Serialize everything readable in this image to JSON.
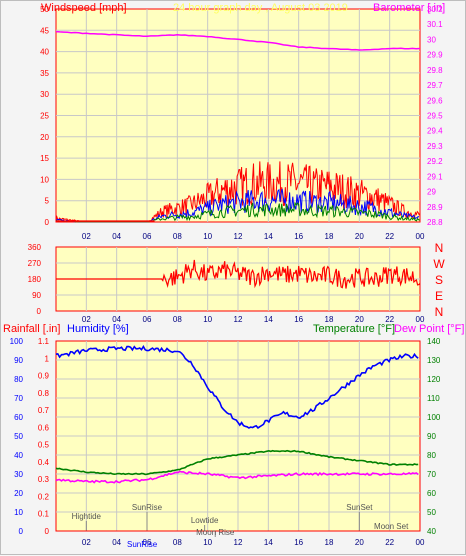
{
  "colors": {
    "plot_bg": "#ffffc0",
    "grid": "#c8c8c8",
    "windspeed": "#ff0000",
    "gust_blue": "#0000ff",
    "wind_green": "#008000",
    "barometer": "#ff00ff",
    "direction": "#ff0000",
    "humidity": "#0000ff",
    "temperature": "#008000",
    "dewpoint": "#ff00ff",
    "title": "#ffff60",
    "events": "#555555"
  },
  "top_panel": {
    "left_title": "Windspeed [mph]",
    "center_title": "24 hour graph day , August 03 2019",
    "right_title": "Barometer [.in]",
    "left_ticks": [
      "50",
      "45",
      "40",
      "35",
      "30",
      "25",
      "20",
      "15",
      "10",
      "5",
      "0"
    ],
    "right_ticks": [
      "30.2",
      "30.1",
      "30",
      "29.9",
      "29.8",
      "29.7",
      "29.6",
      "29.5",
      "29.4",
      "29.3",
      "29.2",
      "29.1",
      "29",
      "28.9",
      "28.8"
    ],
    "x_ticks": [
      "02",
      "04",
      "06",
      "08",
      "10",
      "12",
      "14",
      "16",
      "18",
      "20",
      "22",
      "00"
    ]
  },
  "dir_panel": {
    "left_ticks": [
      "360",
      "270",
      "180",
      "90",
      "0"
    ],
    "compass": [
      "N",
      "W",
      "S",
      "E",
      "N"
    ],
    "x_ticks": [
      "02",
      "04",
      "06",
      "08",
      "10",
      "12",
      "14",
      "16",
      "18",
      "20",
      "22",
      "00"
    ]
  },
  "bottom_panel": {
    "rain_title": "Rainfall [.in]",
    "humidity_title": "Humidity [%]",
    "temp_title": "Temperature [°F]",
    "dew_title": "Dew Point [°F]",
    "humidity_ticks": [
      "100",
      "90",
      "80",
      "70",
      "60",
      "50",
      "40",
      "30",
      "20",
      "10",
      "0"
    ],
    "rain_ticks": [
      "1.1",
      "1",
      "0.9",
      "0.8",
      "0.7",
      "0.6",
      "0.5",
      "0.4",
      "0.3",
      "0.2",
      "0.1",
      "0"
    ],
    "temp_ticks": [
      "140",
      "130",
      "120",
      "110",
      "100",
      "90",
      "80",
      "70",
      "60",
      "50",
      "40"
    ],
    "x_ticks": [
      "02",
      "04",
      "06",
      "08",
      "10",
      "12",
      "14",
      "16",
      "18",
      "20",
      "22",
      "00"
    ],
    "events": [
      {
        "label": "Hightide",
        "hour": 2
      },
      {
        "label": "SunRise",
        "hour": 6
      },
      {
        "label": "Lowtide",
        "hour": 10
      },
      {
        "label": "Moon Rise",
        "hour": 10
      },
      {
        "label": "SunSet",
        "hour": 20
      },
      {
        "label": "Moon Set",
        "hour": 22
      }
    ],
    "sunrise_axis_label": "SunRise"
  },
  "chart_data": [
    {
      "type": "line",
      "title": "24 hour graph day , August 03 2019",
      "x_unit": "hour",
      "xlim": [
        0,
        24
      ],
      "series": [
        {
          "name": "Windspeed [mph]",
          "axis": "left",
          "ylim": [
            0,
            50
          ],
          "x": [
            0,
            1,
            2,
            3,
            4,
            5,
            6,
            7,
            8,
            9,
            10,
            11,
            12,
            13,
            14,
            15,
            16,
            17,
            18,
            19,
            20,
            21,
            22,
            23,
            24
          ],
          "y": [
            1,
            0.5,
            0,
            0,
            0,
            0,
            0,
            3,
            4,
            5,
            7,
            9,
            10,
            11,
            11,
            11,
            11,
            10,
            10,
            9,
            8,
            7,
            5,
            3,
            2
          ]
        },
        {
          "name": "Barometer [.in]",
          "axis": "right",
          "ylim": [
            28.8,
            30.2
          ],
          "x": [
            0,
            2,
            4,
            6,
            8,
            10,
            12,
            14,
            16,
            18,
            20,
            22,
            24
          ],
          "y": [
            30.05,
            30.04,
            30.03,
            30.02,
            30.03,
            30.02,
            30.0,
            29.98,
            29.95,
            29.94,
            29.93,
            29.94,
            29.94
          ]
        }
      ]
    },
    {
      "type": "line",
      "x_unit": "hour",
      "xlim": [
        0,
        24
      ],
      "ylim": [
        0,
        360
      ],
      "series": [
        {
          "name": "Wind direction",
          "x": [
            0,
            2,
            4,
            6,
            7,
            8,
            9,
            10,
            11,
            12,
            13,
            14,
            15,
            16,
            17,
            18,
            19,
            20,
            21,
            22,
            23,
            24
          ],
          "y": [
            180,
            180,
            180,
            180,
            180,
            190,
            240,
            200,
            230,
            210,
            190,
            220,
            200,
            210,
            190,
            200,
            180,
            190,
            180,
            210,
            200,
            180
          ]
        }
      ]
    },
    {
      "type": "line",
      "x_unit": "hour",
      "xlim": [
        0,
        24
      ],
      "series": [
        {
          "name": "Humidity [%]",
          "ylim": [
            0,
            100
          ],
          "x": [
            0,
            2,
            4,
            6,
            8,
            9,
            10,
            11,
            12,
            13,
            14,
            15,
            16,
            17,
            18,
            19,
            20,
            21,
            22,
            23,
            24
          ],
          "y": [
            92,
            95,
            96,
            96,
            95,
            88,
            76,
            65,
            57,
            54,
            58,
            62,
            60,
            64,
            70,
            76,
            82,
            87,
            90,
            92,
            92
          ]
        },
        {
          "name": "Temperature [°F]",
          "ylim": [
            40,
            140
          ],
          "x": [
            0,
            2,
            4,
            6,
            8,
            10,
            12,
            14,
            16,
            18,
            20,
            22,
            24
          ],
          "y": [
            73,
            71,
            70,
            70,
            72,
            78,
            80,
            82,
            82,
            79,
            77,
            75,
            75
          ]
        },
        {
          "name": "Dew Point [°F]",
          "ylim": [
            40,
            140
          ],
          "x": [
            0,
            2,
            4,
            6,
            8,
            10,
            12,
            14,
            16,
            18,
            20,
            22,
            24
          ],
          "y": [
            67,
            66,
            66,
            67,
            71,
            70,
            68,
            69,
            70,
            70,
            70,
            70,
            70
          ]
        },
        {
          "name": "Rainfall [.in]",
          "ylim": [
            0,
            1.1
          ],
          "x": [
            0,
            24
          ],
          "y": [
            0,
            0
          ]
        }
      ]
    }
  ]
}
